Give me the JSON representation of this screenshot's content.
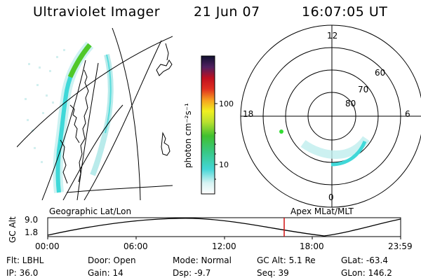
{
  "header": {
    "title": "Ultraviolet Imager",
    "date": "21 Jun 07",
    "time": "16:07:05 UT"
  },
  "colorbar": {
    "unit_label": "photon cm⁻²s⁻¹",
    "ticks": [
      "100",
      "10"
    ],
    "scale": "log"
  },
  "polar_plot": {
    "mlt_labels": [
      "12",
      "18",
      "6",
      "0"
    ],
    "lat_labels": [
      "60",
      "70",
      "80"
    ]
  },
  "timeline": {
    "ylabel": "GC Alt",
    "ymax_label": "9.0",
    "ymin_label": "1.8",
    "left_caption": "Geographic Lat/Lon",
    "right_caption": "Apex MLat/MLT",
    "time_ticks": [
      "00:00",
      "06:00",
      "12:00",
      "18:00",
      "23:59"
    ],
    "current_time_fraction": 0.67
  },
  "info_rows": [
    [
      "Flt: LBHL",
      "Door: Open",
      "Mode: Normal",
      "GC Alt: 5.1 Re",
      "GLat: -63.4"
    ],
    [
      "IP: 36.0",
      "Gain: 14",
      "Dsp: -9.7",
      "Seq: 39",
      "GLon: 146.2"
    ]
  ],
  "colors": {
    "aurora_green": "#4fc82a",
    "aurora_cyan": "#3fd8d8",
    "marker_red": "#d01010",
    "point_green": "#33dd33"
  }
}
